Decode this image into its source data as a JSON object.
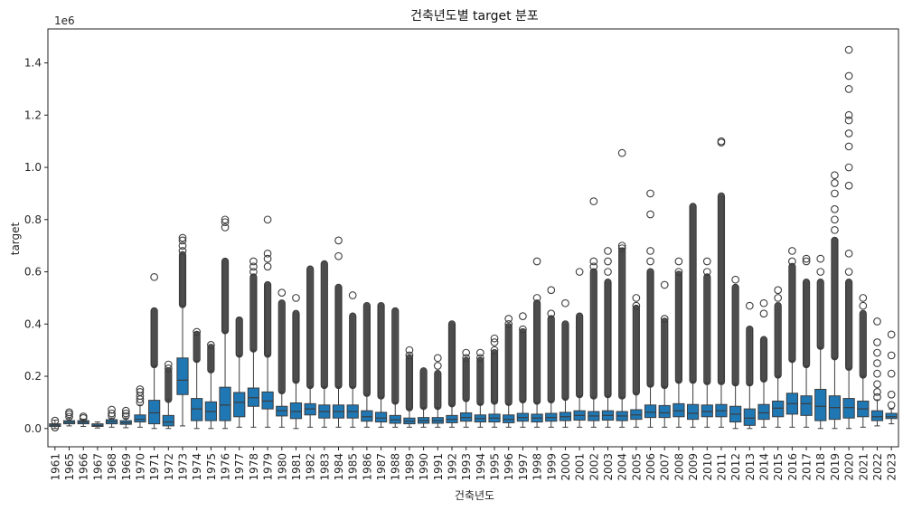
{
  "chart_data": {
    "type": "box",
    "title": "건축년도별 target 분포",
    "xlabel": "건축년도",
    "ylabel": "target",
    "y_offset_text": "1e6",
    "ylim": [
      -0.07,
      1.53
    ],
    "yticks": [
      0.0,
      0.2,
      0.4,
      0.6,
      0.8,
      1.0,
      1.2,
      1.4
    ],
    "ytick_labels": [
      "0.0",
      "0.2",
      "0.4",
      "0.6",
      "0.8",
      "1.0",
      "1.2",
      "1.4"
    ],
    "grid": false,
    "box_color": "#1f77b4",
    "line_color": "#3d3d3d",
    "categories": [
      {
        "year": "1961",
        "q1": 0.008,
        "median": 0.013,
        "q3": 0.018,
        "low": 0.0,
        "high": 0.032,
        "fliers": [
          0.004,
          0.03
        ],
        "dense": null
      },
      {
        "year": "1965",
        "q1": 0.018,
        "median": 0.024,
        "q3": 0.03,
        "low": 0.01,
        "high": 0.038,
        "fliers": [
          0.045,
          0.055,
          0.062
        ],
        "dense": null
      },
      {
        "year": "1966",
        "q1": 0.018,
        "median": 0.024,
        "q3": 0.03,
        "low": 0.008,
        "high": 0.036,
        "fliers": [
          0.04,
          0.046
        ],
        "dense": null
      },
      {
        "year": "1967",
        "q1": 0.008,
        "median": 0.012,
        "q3": 0.018,
        "low": 0.002,
        "high": 0.025,
        "fliers": [],
        "dense": null
      },
      {
        "year": "1968",
        "q1": 0.018,
        "median": 0.026,
        "q3": 0.034,
        "low": 0.005,
        "high": 0.04,
        "fliers": [
          0.048,
          0.058,
          0.072
        ],
        "dense": null
      },
      {
        "year": "1969",
        "q1": 0.016,
        "median": 0.022,
        "q3": 0.03,
        "low": 0.003,
        "high": 0.04,
        "fliers": [
          0.048,
          0.058,
          0.068
        ],
        "dense": null
      },
      {
        "year": "1970",
        "q1": 0.025,
        "median": 0.035,
        "q3": 0.052,
        "low": 0.005,
        "high": 0.09,
        "fliers": [
          0.1,
          0.112,
          0.125,
          0.14,
          0.15
        ],
        "dense": null
      },
      {
        "year": "1971",
        "q1": 0.018,
        "median": 0.06,
        "q3": 0.108,
        "low": 0.0,
        "high": 0.24,
        "fliers": [
          0.58
        ],
        "dense": [
          0.245,
          0.45
        ]
      },
      {
        "year": "1972",
        "q1": 0.01,
        "median": 0.025,
        "q3": 0.05,
        "low": 0.0,
        "high": 0.11,
        "fliers": [
          0.23,
          0.245
        ],
        "dense": [
          0.112,
          0.22
        ]
      },
      {
        "year": "1973",
        "q1": 0.13,
        "median": 0.185,
        "q3": 0.27,
        "low": 0.01,
        "high": 0.47,
        "fliers": [
          0.68,
          0.7,
          0.72,
          0.73
        ],
        "dense": [
          0.475,
          0.665
        ]
      },
      {
        "year": "1974",
        "q1": 0.03,
        "median": 0.075,
        "q3": 0.115,
        "low": 0.0,
        "high": 0.26,
        "fliers": [
          0.37
        ],
        "dense": [
          0.265,
          0.36
        ]
      },
      {
        "year": "1975",
        "q1": 0.03,
        "median": 0.065,
        "q3": 0.102,
        "low": 0.0,
        "high": 0.22,
        "fliers": [
          0.32
        ],
        "dense": [
          0.225,
          0.31
        ]
      },
      {
        "year": "1976",
        "q1": 0.03,
        "median": 0.09,
        "q3": 0.158,
        "low": 0.0,
        "high": 0.37,
        "fliers": [
          0.77,
          0.79,
          0.8
        ],
        "dense": [
          0.375,
          0.64
        ]
      },
      {
        "year": "1977",
        "q1": 0.045,
        "median": 0.1,
        "q3": 0.138,
        "low": 0.005,
        "high": 0.28,
        "fliers": [],
        "dense": [
          0.285,
          0.415
        ]
      },
      {
        "year": "1978",
        "q1": 0.085,
        "median": 0.118,
        "q3": 0.155,
        "low": 0.005,
        "high": 0.3,
        "fliers": [
          0.6,
          0.62,
          0.64
        ],
        "dense": [
          0.305,
          0.58
        ]
      },
      {
        "year": "1979",
        "q1": 0.075,
        "median": 0.105,
        "q3": 0.14,
        "low": 0.005,
        "high": 0.28,
        "fliers": [
          0.62,
          0.65,
          0.67,
          0.8
        ],
        "dense": [
          0.285,
          0.55
        ]
      },
      {
        "year": "1980",
        "q1": 0.048,
        "median": 0.068,
        "q3": 0.085,
        "low": 0.005,
        "high": 0.14,
        "fliers": [
          0.52
        ],
        "dense": [
          0.145,
          0.48
        ]
      },
      {
        "year": "1981",
        "q1": 0.038,
        "median": 0.065,
        "q3": 0.098,
        "low": 0.0,
        "high": 0.18,
        "fliers": [
          0.5
        ],
        "dense": [
          0.185,
          0.44
        ]
      },
      {
        "year": "1982",
        "q1": 0.052,
        "median": 0.075,
        "q3": 0.095,
        "low": 0.005,
        "high": 0.16,
        "fliers": [],
        "dense": [
          0.165,
          0.61
        ]
      },
      {
        "year": "1983",
        "q1": 0.04,
        "median": 0.065,
        "q3": 0.09,
        "low": 0.005,
        "high": 0.16,
        "fliers": [],
        "dense": [
          0.165,
          0.63
        ]
      },
      {
        "year": "1984",
        "q1": 0.04,
        "median": 0.065,
        "q3": 0.09,
        "low": 0.005,
        "high": 0.16,
        "fliers": [
          0.66,
          0.72
        ],
        "dense": [
          0.165,
          0.54
        ]
      },
      {
        "year": "1985",
        "q1": 0.04,
        "median": 0.065,
        "q3": 0.09,
        "low": 0.005,
        "high": 0.16,
        "fliers": [
          0.51
        ],
        "dense": [
          0.165,
          0.43
        ]
      },
      {
        "year": "1986",
        "q1": 0.028,
        "median": 0.045,
        "q3": 0.068,
        "low": 0.005,
        "high": 0.13,
        "fliers": [],
        "dense": [
          0.135,
          0.47
        ]
      },
      {
        "year": "1987",
        "q1": 0.025,
        "median": 0.04,
        "q3": 0.062,
        "low": 0.005,
        "high": 0.12,
        "fliers": [],
        "dense": [
          0.125,
          0.47
        ]
      },
      {
        "year": "1988",
        "q1": 0.02,
        "median": 0.033,
        "q3": 0.05,
        "low": 0.005,
        "high": 0.1,
        "fliers": [],
        "dense": [
          0.105,
          0.45
        ]
      },
      {
        "year": "1989",
        "q1": 0.018,
        "median": 0.028,
        "q3": 0.04,
        "low": 0.005,
        "high": 0.075,
        "fliers": [
          0.28,
          0.3
        ],
        "dense": [
          0.08,
          0.27
        ]
      },
      {
        "year": "1990",
        "q1": 0.02,
        "median": 0.03,
        "q3": 0.042,
        "low": 0.005,
        "high": 0.08,
        "fliers": [],
        "dense": [
          0.085,
          0.22
        ]
      },
      {
        "year": "1991",
        "q1": 0.02,
        "median": 0.03,
        "q3": 0.042,
        "low": 0.005,
        "high": 0.08,
        "fliers": [
          0.24,
          0.27
        ],
        "dense": [
          0.085,
          0.21
        ]
      },
      {
        "year": "1992",
        "q1": 0.022,
        "median": 0.035,
        "q3": 0.05,
        "low": 0.005,
        "high": 0.09,
        "fliers": [],
        "dense": [
          0.095,
          0.4
        ]
      },
      {
        "year": "1993",
        "q1": 0.028,
        "median": 0.042,
        "q3": 0.06,
        "low": 0.005,
        "high": 0.11,
        "fliers": [
          0.27,
          0.29
        ],
        "dense": [
          0.115,
          0.26
        ]
      },
      {
        "year": "1994",
        "q1": 0.025,
        "median": 0.038,
        "q3": 0.052,
        "low": 0.005,
        "high": 0.095,
        "fliers": [
          0.27,
          0.29
        ],
        "dense": [
          0.1,
          0.26
        ]
      },
      {
        "year": "1995",
        "q1": 0.025,
        "median": 0.04,
        "q3": 0.055,
        "low": 0.005,
        "high": 0.1,
        "fliers": [
          0.3,
          0.33,
          0.345
        ],
        "dense": [
          0.105,
          0.29
        ]
      },
      {
        "year": "1996",
        "q1": 0.022,
        "median": 0.035,
        "q3": 0.052,
        "low": 0.005,
        "high": 0.095,
        "fliers": [
          0.4,
          0.42
        ],
        "dense": [
          0.1,
          0.39
        ]
      },
      {
        "year": "1997",
        "q1": 0.028,
        "median": 0.042,
        "q3": 0.058,
        "low": 0.005,
        "high": 0.105,
        "fliers": [
          0.38,
          0.43
        ],
        "dense": [
          0.11,
          0.37
        ]
      },
      {
        "year": "1998",
        "q1": 0.025,
        "median": 0.04,
        "q3": 0.055,
        "low": 0.005,
        "high": 0.1,
        "fliers": [
          0.5,
          0.64
        ],
        "dense": [
          0.105,
          0.48
        ]
      },
      {
        "year": "1999",
        "q1": 0.028,
        "median": 0.042,
        "q3": 0.058,
        "low": 0.005,
        "high": 0.105,
        "fliers": [
          0.44,
          0.53
        ],
        "dense": [
          0.11,
          0.42
        ]
      },
      {
        "year": "2000",
        "q1": 0.03,
        "median": 0.045,
        "q3": 0.062,
        "low": 0.005,
        "high": 0.115,
        "fliers": [
          0.48
        ],
        "dense": [
          0.12,
          0.4
        ]
      },
      {
        "year": "2001",
        "q1": 0.032,
        "median": 0.05,
        "q3": 0.068,
        "low": 0.005,
        "high": 0.125,
        "fliers": [
          0.6
        ],
        "dense": [
          0.13,
          0.43
        ]
      },
      {
        "year": "2002",
        "q1": 0.03,
        "median": 0.048,
        "q3": 0.065,
        "low": 0.005,
        "high": 0.12,
        "fliers": [
          0.62,
          0.64,
          0.87
        ],
        "dense": [
          0.125,
          0.6
        ]
      },
      {
        "year": "2003",
        "q1": 0.032,
        "median": 0.05,
        "q3": 0.068,
        "low": 0.005,
        "high": 0.125,
        "fliers": [
          0.6,
          0.64,
          0.68
        ],
        "dense": [
          0.13,
          0.56
        ]
      },
      {
        "year": "2004",
        "q1": 0.03,
        "median": 0.048,
        "q3": 0.065,
        "low": 0.005,
        "high": 0.12,
        "fliers": [
          0.69,
          0.7,
          1.055
        ],
        "dense": [
          0.125,
          0.68
        ]
      },
      {
        "year": "2005",
        "q1": 0.035,
        "median": 0.052,
        "q3": 0.072,
        "low": 0.005,
        "high": 0.135,
        "fliers": [
          0.47,
          0.5
        ],
        "dense": [
          0.14,
          0.46
        ]
      },
      {
        "year": "2006",
        "q1": 0.042,
        "median": 0.062,
        "q3": 0.09,
        "low": 0.005,
        "high": 0.165,
        "fliers": [
          0.64,
          0.68,
          0.82,
          0.9
        ],
        "dense": [
          0.17,
          0.6
        ]
      },
      {
        "year": "2007",
        "q1": 0.042,
        "median": 0.06,
        "q3": 0.088,
        "low": 0.005,
        "high": 0.16,
        "fliers": [
          0.42,
          0.55
        ],
        "dense": [
          0.165,
          0.41
        ]
      },
      {
        "year": "2008",
        "q1": 0.045,
        "median": 0.068,
        "q3": 0.095,
        "low": 0.005,
        "high": 0.18,
        "fliers": [
          0.6,
          0.64
        ],
        "dense": [
          0.185,
          0.59
        ]
      },
      {
        "year": "2009",
        "q1": 0.035,
        "median": 0.058,
        "q3": 0.092,
        "low": 0.005,
        "high": 0.18,
        "fliers": [],
        "dense": [
          0.185,
          0.85
        ]
      },
      {
        "year": "2010",
        "q1": 0.045,
        "median": 0.065,
        "q3": 0.09,
        "low": 0.005,
        "high": 0.175,
        "fliers": [
          0.6,
          0.64
        ],
        "dense": [
          0.18,
          0.58
        ]
      },
      {
        "year": "2011",
        "q1": 0.045,
        "median": 0.068,
        "q3": 0.092,
        "low": 0.005,
        "high": 0.175,
        "fliers": [
          1.095,
          1.1
        ],
        "dense": [
          0.18,
          0.89
        ]
      },
      {
        "year": "2012",
        "q1": 0.025,
        "median": 0.055,
        "q3": 0.085,
        "low": 0.0,
        "high": 0.17,
        "fliers": [
          0.57
        ],
        "dense": [
          0.175,
          0.54
        ]
      },
      {
        "year": "2013",
        "q1": 0.012,
        "median": 0.04,
        "q3": 0.075,
        "low": 0.0,
        "high": 0.17,
        "fliers": [
          0.47
        ],
        "dense": [
          0.175,
          0.38
        ]
      },
      {
        "year": "2014",
        "q1": 0.035,
        "median": 0.06,
        "q3": 0.092,
        "low": 0.005,
        "high": 0.185,
        "fliers": [
          0.44,
          0.48
        ],
        "dense": [
          0.19,
          0.34
        ]
      },
      {
        "year": "2015",
        "q1": 0.045,
        "median": 0.078,
        "q3": 0.105,
        "low": 0.005,
        "high": 0.2,
        "fliers": [
          0.5,
          0.53
        ],
        "dense": [
          0.205,
          0.47
        ]
      },
      {
        "year": "2016",
        "q1": 0.055,
        "median": 0.095,
        "q3": 0.135,
        "low": 0.005,
        "high": 0.26,
        "fliers": [
          0.64,
          0.68
        ],
        "dense": [
          0.265,
          0.62
        ]
      },
      {
        "year": "2017",
        "q1": 0.05,
        "median": 0.095,
        "q3": 0.125,
        "low": 0.005,
        "high": 0.24,
        "fliers": [
          0.64,
          0.65
        ],
        "dense": [
          0.245,
          0.56
        ]
      },
      {
        "year": "2018",
        "q1": 0.03,
        "median": 0.085,
        "q3": 0.15,
        "low": 0.0,
        "high": 0.31,
        "fliers": [
          0.6,
          0.65
        ],
        "dense": [
          0.315,
          0.56
        ]
      },
      {
        "year": "2019",
        "q1": 0.035,
        "median": 0.08,
        "q3": 0.125,
        "low": 0.0,
        "high": 0.27,
        "fliers": [
          0.76,
          0.8,
          0.84,
          0.9,
          0.94,
          0.97
        ],
        "dense": [
          0.275,
          0.72
        ]
      },
      {
        "year": "2020",
        "q1": 0.04,
        "median": 0.08,
        "q3": 0.115,
        "low": 0.0,
        "high": 0.23,
        "fliers": [
          0.6,
          0.67,
          0.93,
          1.0,
          1.08,
          1.13,
          1.18,
          1.2,
          1.3,
          1.35,
          1.45
        ],
        "dense": [
          0.235,
          0.56
        ]
      },
      {
        "year": "2021",
        "q1": 0.045,
        "median": 0.075,
        "q3": 0.105,
        "low": 0.005,
        "high": 0.2,
        "fliers": [
          0.47,
          0.5
        ],
        "dense": [
          0.205,
          0.44
        ]
      },
      {
        "year": "2022",
        "q1": 0.03,
        "median": 0.045,
        "q3": 0.068,
        "low": 0.01,
        "high": 0.11,
        "fliers": [
          0.12,
          0.14,
          0.17,
          0.21,
          0.25,
          0.29,
          0.33,
          0.41
        ],
        "dense": null
      },
      {
        "year": "2023",
        "q1": 0.038,
        "median": 0.045,
        "q3": 0.058,
        "low": 0.018,
        "high": 0.075,
        "fliers": [
          0.09,
          0.13,
          0.21,
          0.28,
          0.36
        ],
        "dense": null
      }
    ]
  }
}
